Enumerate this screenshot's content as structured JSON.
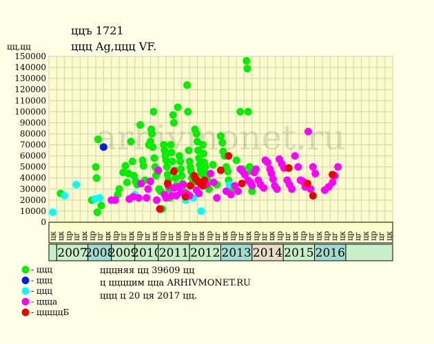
{
  "title": "ццъ 1721",
  "subtitle": "ццц Ag,ццц VF.",
  "ylabel": "цц,цц",
  "watermark": "arhivmonet.ru",
  "footer": {
    "line1": "цццняя цц 39609 цц",
    "line2": "ц ццццим цца ARHIVMONET.RU",
    "line3": "ццц ц 20 ця 2017 цц."
  },
  "colors": {
    "background": "#ffffe6",
    "plot_background": "#fbfbcc",
    "grid": "#d2d2b4",
    "year_band_green": "#c8f0c8",
    "year_band_teal": "#a0ddd0",
    "year_band_beige": "#e8dcc4",
    "legend_text": "#000000"
  },
  "legend": [
    {
      "label": "- ццц",
      "color": "#00ee00"
    },
    {
      "label": "- ццц",
      "color": "#0022dd"
    },
    {
      "label": "- ццц",
      "color": "#00ffff"
    },
    {
      "label": "- ццца",
      "color": "#ff00ff"
    },
    {
      "label": "- цццццБ",
      "color": "#ee0000"
    }
  ],
  "x_axis": {
    "quarter_labels": [
      "цк",
      "цк",
      "цр",
      "цг",
      "цк",
      "цр",
      "цг",
      "цк",
      "цр",
      "цг",
      "цк",
      "цр",
      "цг",
      "цк",
      "цр",
      "цг",
      "цк",
      "цр",
      "цг",
      "цк",
      "цр",
      "цг",
      "цк",
      "цр",
      "цг",
      "цк",
      "цр",
      "цг",
      "цк",
      "цр",
      "цг",
      "цк",
      "цр",
      "цг",
      "цк",
      "цр",
      "цг",
      "цк",
      "цр",
      "цг",
      "цк",
      "цр",
      "цг",
      "цк"
    ],
    "years": [
      {
        "label": "",
        "start": 0,
        "end": 1,
        "band": "year_band_green"
      },
      {
        "label": "2007",
        "start": 1,
        "end": 5,
        "band": "year_band_green"
      },
      {
        "label": "2008",
        "start": 5,
        "end": 8,
        "band": "year_band_teal"
      },
      {
        "label": "2009",
        "start": 8,
        "end": 11,
        "band": "year_band_green"
      },
      {
        "label": "2010",
        "start": 11,
        "end": 14,
        "band": "year_band_green"
      },
      {
        "label": "2011",
        "start": 14,
        "end": 18,
        "band": "year_band_green"
      },
      {
        "label": "2012",
        "start": 18,
        "end": 22,
        "band": "year_band_green"
      },
      {
        "label": "2013",
        "start": 22,
        "end": 26,
        "band": "year_band_teal"
      },
      {
        "label": "2014",
        "start": 26,
        "end": 30,
        "band": "year_band_beige"
      },
      {
        "label": "2015",
        "start": 30,
        "end": 34,
        "band": "year_band_green"
      },
      {
        "label": "2016",
        "start": 34,
        "end": 38,
        "band": "year_band_teal"
      },
      {
        "label": "",
        "start": 38,
        "end": 44,
        "band": "year_band_green"
      }
    ]
  },
  "chart_data": {
    "type": "scatter",
    "ylim": [
      0,
      150000
    ],
    "yticks": [
      "0",
      "10000",
      "20000",
      "30000",
      "40000",
      "50000",
      "60000",
      "70000",
      "80000",
      "90000",
      "100000",
      "110000",
      "120000",
      "130000",
      "140000",
      "150000"
    ],
    "grid": true,
    "series": [
      {
        "name": "ццц",
        "color": "#00ee00",
        "points": [
          [
            1,
            26000
          ],
          [
            5,
            20000
          ],
          [
            5.5,
            50000
          ],
          [
            5.6,
            40000
          ],
          [
            5.7,
            9000
          ],
          [
            5.8,
            75000
          ],
          [
            6.2,
            15000
          ],
          [
            8.3,
            25000
          ],
          [
            8.5,
            30000
          ],
          [
            9,
            45000
          ],
          [
            9.3,
            51000
          ],
          [
            9.5,
            36000
          ],
          [
            9.7,
            44000
          ],
          [
            10,
            73000
          ],
          [
            10.2,
            55000
          ],
          [
            10.4,
            42000
          ],
          [
            10.6,
            37000
          ],
          [
            10.8,
            34000
          ],
          [
            11.2,
            88000
          ],
          [
            11.5,
            56000
          ],
          [
            11.6,
            51000
          ],
          [
            11.8,
            38000
          ],
          [
            12.3,
            70000
          ],
          [
            12.5,
            73000
          ],
          [
            12.6,
            84000
          ],
          [
            12.7,
            80000
          ],
          [
            12.8,
            68000
          ],
          [
            12.9,
            100000
          ],
          [
            13,
            58000
          ],
          [
            13.1,
            50000
          ],
          [
            13.2,
            42000
          ],
          [
            13.4,
            45000
          ],
          [
            13.6,
            30000
          ],
          [
            13.8,
            28000
          ],
          [
            14,
            12000
          ],
          [
            14.2,
            70000
          ],
          [
            14.3,
            65000
          ],
          [
            14.4,
            60000
          ],
          [
            14.5,
            56000
          ],
          [
            14.6,
            50000
          ],
          [
            14.7,
            43000
          ],
          [
            14.8,
            38000
          ],
          [
            14.9,
            30000
          ],
          [
            15,
            22000
          ],
          [
            15.1,
            70000
          ],
          [
            15.2,
            63000
          ],
          [
            15.3,
            55000
          ],
          [
            15.4,
            97000
          ],
          [
            15.5,
            90000
          ],
          [
            15.6,
            47000
          ],
          [
            15.7,
            40000
          ],
          [
            15.8,
            33000
          ],
          [
            16,
            104000
          ],
          [
            16.2,
            60000
          ],
          [
            16.3,
            55000
          ],
          [
            16.4,
            48000
          ],
          [
            16.5,
            42000
          ],
          [
            16.6,
            35000
          ],
          [
            16.8,
            28000
          ],
          [
            17,
            22000
          ],
          [
            17.2,
            124000
          ],
          [
            17.3,
            100000
          ],
          [
            17.4,
            65000
          ],
          [
            17.5,
            55000
          ],
          [
            17.6,
            50000
          ],
          [
            17.7,
            46000
          ],
          [
            17.8,
            40000
          ],
          [
            17.9,
            35000
          ],
          [
            18.2,
            84000
          ],
          [
            18.4,
            80000
          ],
          [
            18.5,
            73000
          ],
          [
            18.6,
            65000
          ],
          [
            18.7,
            58000
          ],
          [
            18.8,
            52000
          ],
          [
            18.9,
            48000
          ],
          [
            19,
            44000
          ],
          [
            19.2,
            70000
          ],
          [
            19.3,
            62000
          ],
          [
            19.4,
            54000
          ],
          [
            19.5,
            50000
          ],
          [
            19.6,
            44000
          ],
          [
            19.8,
            38000
          ],
          [
            20,
            30000
          ],
          [
            20.5,
            52000
          ],
          [
            21,
            34000
          ],
          [
            21.5,
            78000
          ],
          [
            21.7,
            72000
          ],
          [
            21.8,
            64000
          ],
          [
            22,
            60000
          ],
          [
            22.2,
            50000
          ],
          [
            22.4,
            46000
          ],
          [
            22.5,
            38000
          ],
          [
            23,
            30000
          ],
          [
            23.5,
            56000
          ],
          [
            24,
            100000
          ],
          [
            24.3,
            48000
          ],
          [
            24.8,
            146000
          ],
          [
            24.9,
            139000
          ],
          [
            25,
            100000
          ],
          [
            25.2,
            50000
          ],
          [
            25.3,
            46000
          ],
          [
            25.5,
            28000
          ]
        ]
      },
      {
        "name": "ццц",
        "color": "#0022dd",
        "points": [
          [
            6.5,
            68000
          ]
        ]
      },
      {
        "name": "ццц",
        "color": "#00ffff",
        "points": [
          [
            0,
            9000
          ],
          [
            1.5,
            24000
          ],
          [
            3,
            34000
          ],
          [
            5.4,
            21000
          ],
          [
            6,
            22000
          ],
          [
            10.5,
            25000
          ],
          [
            17,
            20000
          ],
          [
            18,
            22000
          ],
          [
            19,
            10000
          ],
          [
            22.6,
            34000
          ]
        ]
      },
      {
        "name": "ццца",
        "color": "#ff00ff",
        "points": [
          [
            7.5,
            20000
          ],
          [
            8,
            20000
          ],
          [
            9.8,
            21000
          ],
          [
            10.3,
            23000
          ],
          [
            11,
            22000
          ],
          [
            11.3,
            35000
          ],
          [
            12,
            22000
          ],
          [
            12.2,
            30000
          ],
          [
            12.5,
            37000
          ],
          [
            13.3,
            20000
          ],
          [
            13.5,
            47000
          ],
          [
            14.3,
            25000
          ],
          [
            14.5,
            22000
          ],
          [
            14.8,
            33000
          ],
          [
            15.2,
            24000
          ],
          [
            15.5,
            31000
          ],
          [
            15.8,
            24000
          ],
          [
            16.1,
            32000
          ],
          [
            16.4,
            27000
          ],
          [
            16.7,
            34000
          ],
          [
            17.1,
            26000
          ],
          [
            17.5,
            24000
          ],
          [
            18.4,
            29000
          ],
          [
            18.7,
            26000
          ],
          [
            19.7,
            34000
          ],
          [
            20.2,
            44000
          ],
          [
            20.6,
            36000
          ],
          [
            21,
            22000
          ],
          [
            22.2,
            28000
          ],
          [
            22.8,
            25000
          ],
          [
            23.3,
            33000
          ],
          [
            23.7,
            28000
          ],
          [
            24,
            48000
          ],
          [
            24.3,
            46000
          ],
          [
            24.6,
            43000
          ],
          [
            25,
            38000
          ],
          [
            25.3,
            36000
          ],
          [
            25.5,
            33000
          ],
          [
            25.8,
            45000
          ],
          [
            26,
            48000
          ],
          [
            26.3,
            38000
          ],
          [
            26.6,
            34000
          ],
          [
            27,
            31000
          ],
          [
            27.2,
            56000
          ],
          [
            27.5,
            54000
          ],
          [
            27.8,
            48000
          ],
          [
            28,
            44000
          ],
          [
            28.2,
            39000
          ],
          [
            28.4,
            33000
          ],
          [
            28.7,
            30000
          ],
          [
            29,
            57000
          ],
          [
            29.3,
            53000
          ],
          [
            29.6,
            49000
          ],
          [
            30,
            38000
          ],
          [
            30.3,
            34000
          ],
          [
            30.6,
            30000
          ],
          [
            31,
            60000
          ],
          [
            31.4,
            50000
          ],
          [
            31.7,
            38000
          ],
          [
            32,
            37000
          ],
          [
            32.3,
            32000
          ],
          [
            32.7,
            82000
          ],
          [
            33,
            30000
          ],
          [
            33.3,
            50000
          ],
          [
            33.6,
            44000
          ],
          [
            34.8,
            29000
          ],
          [
            35.3,
            32000
          ],
          [
            35.8,
            36000
          ],
          [
            36.1,
            42000
          ],
          [
            36.5,
            50000
          ]
        ]
      },
      {
        "name": "цццццБ",
        "color": "#ee0000",
        "points": [
          [
            13.7,
            12000
          ],
          [
            14.7,
            35000
          ],
          [
            15.5,
            46000
          ],
          [
            17,
            23000
          ],
          [
            17.6,
            33000
          ],
          [
            18.1,
            42000
          ],
          [
            18.3,
            39000
          ],
          [
            18.6,
            37000
          ],
          [
            18.9,
            35000
          ],
          [
            19.2,
            33000
          ],
          [
            19.4,
            38000
          ],
          [
            21.5,
            47000
          ],
          [
            22.5,
            60000
          ],
          [
            24.2,
            35000
          ],
          [
            30.2,
            49000
          ],
          [
            32.6,
            35000
          ],
          [
            33.3,
            24000
          ],
          [
            35.8,
            43000
          ]
        ]
      }
    ]
  }
}
